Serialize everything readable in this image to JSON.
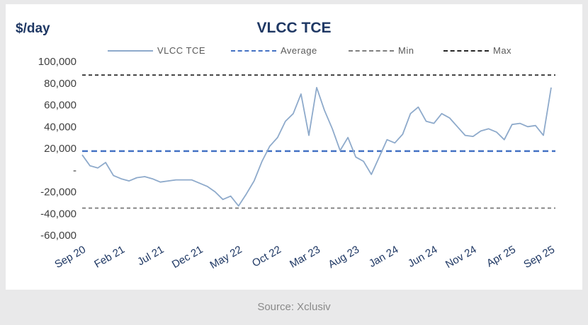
{
  "chart_data": {
    "type": "line",
    "title": "VLCC TCE",
    "ylabel": "$/day",
    "xlabel": "",
    "ylim": [
      -60000,
      100000
    ],
    "yticks": [
      "100,000",
      "80,000",
      "60,000",
      "40,000",
      "20,000",
      "-",
      "-20,000",
      "-40,000",
      "-60,000"
    ],
    "ytick_values": [
      100000,
      80000,
      60000,
      40000,
      20000,
      0,
      -20000,
      -40000,
      -60000
    ],
    "xlim": [
      "2020-09",
      "2025-09"
    ],
    "xticks": [
      "Sep 20",
      "Feb 21",
      "Jul 21",
      "Dec 21",
      "May 22",
      "Oct 22",
      "Mar 23",
      "Aug 23",
      "Jan 24",
      "Jun 24",
      "Nov 24",
      "Apr 25",
      "Sep 25"
    ],
    "xtick_dates": [
      "2020-09",
      "2021-02",
      "2021-07",
      "2021-12",
      "2022-05",
      "2022-10",
      "2023-03",
      "2023-08",
      "2024-01",
      "2024-06",
      "2024-11",
      "2025-04",
      "2025-09"
    ],
    "grid": false,
    "legend_position": "top",
    "series": [
      {
        "name": "VLCC TCE",
        "color": "#8eaacb",
        "style": "solid",
        "x": [
          "2020-09",
          "2020-10",
          "2020-11",
          "2020-12",
          "2021-01",
          "2021-02",
          "2021-03",
          "2021-04",
          "2021-05",
          "2021-06",
          "2021-07",
          "2021-08",
          "2021-09",
          "2021-10",
          "2021-11",
          "2021-12",
          "2022-01",
          "2022-02",
          "2022-03",
          "2022-04",
          "2022-05",
          "2022-06",
          "2022-07",
          "2022-08",
          "2022-09",
          "2022-10",
          "2022-11",
          "2022-12",
          "2023-01",
          "2023-02",
          "2023-03",
          "2023-04",
          "2023-05",
          "2023-06",
          "2023-07",
          "2023-08",
          "2023-09",
          "2023-10",
          "2023-11",
          "2023-12",
          "2024-01",
          "2024-02",
          "2024-03",
          "2024-04",
          "2024-05",
          "2024-06",
          "2024-07",
          "2024-08",
          "2024-09",
          "2024-10",
          "2024-11",
          "2024-12",
          "2025-01",
          "2025-02",
          "2025-03",
          "2025-04",
          "2025-05",
          "2025-06",
          "2025-07",
          "2025-08",
          "2025-09"
        ],
        "values": [
          14000,
          4000,
          2000,
          7000,
          -5000,
          -8000,
          -10000,
          -7000,
          -6000,
          -8000,
          -11000,
          -10000,
          -9000,
          -9000,
          -9000,
          -12000,
          -15000,
          -20000,
          -27000,
          -24000,
          -33000,
          -22000,
          -10000,
          8000,
          22000,
          30000,
          45000,
          52000,
          70000,
          32000,
          76000,
          55000,
          38000,
          18000,
          30000,
          12000,
          8000,
          -4000,
          12000,
          28000,
          25000,
          33000,
          52000,
          58000,
          45000,
          43000,
          52000,
          48000,
          40000,
          32000,
          31000,
          36000,
          38000,
          35000,
          28000,
          42000,
          43000,
          40000,
          41000,
          32000,
          76000
        ]
      },
      {
        "name": "Average",
        "color": "#4472c4",
        "style": "dashed",
        "value": 17500
      },
      {
        "name": "Min",
        "color": "#7f7f7f",
        "style": "dashed",
        "value": -35000
      },
      {
        "name": "Max",
        "color": "#262626",
        "style": "dashed",
        "value": 87500
      }
    ]
  },
  "footer": {
    "source": "Source: Xclusiv"
  }
}
